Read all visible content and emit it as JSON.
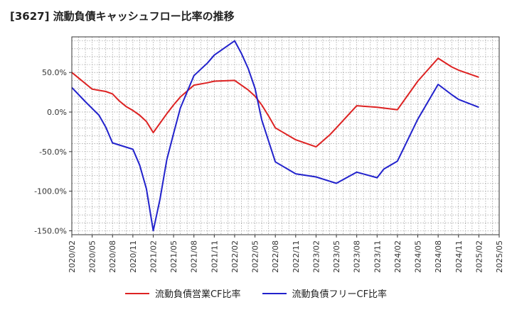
{
  "chart_data": {
    "type": "line",
    "title": "[3627]  流動負債キャッシュフロー比率の推移",
    "xlabel": "",
    "ylabel": "",
    "ylim": [
      -155,
      95
    ],
    "yticks": [
      50,
      0,
      -50,
      -100,
      -150
    ],
    "ytick_labels": [
      "50.0%",
      "0.0%",
      "-50.0%",
      "-100.0%",
      "-150.0%"
    ],
    "xlim": [
      "2020/02",
      "2025/05"
    ],
    "xtick_labels": [
      "2020/02",
      "2020/05",
      "2020/08",
      "2020/11",
      "2021/02",
      "2021/05",
      "2021/08",
      "2021/11",
      "2022/02",
      "2022/05",
      "2022/08",
      "2022/11",
      "2023/02",
      "2023/05",
      "2023/08",
      "2023/11",
      "2024/02",
      "2024/05",
      "2024/08",
      "2024/11",
      "2025/02",
      "2025/05"
    ],
    "grid": true,
    "legend_position": "bottom",
    "series": [
      {
        "name": "流動負債営業CF比率",
        "color": "#dd2222",
        "points": [
          [
            "2020/02",
            50
          ],
          [
            "2020/05",
            29
          ],
          [
            "2020/07",
            26
          ],
          [
            "2020/08",
            23
          ],
          [
            "2020/09",
            14
          ],
          [
            "2020/10",
            7
          ],
          [
            "2020/11",
            2
          ],
          [
            "2020/12",
            -4
          ],
          [
            "2021/01",
            -12
          ],
          [
            "2021/02",
            -26
          ],
          [
            "2021/04",
            -2
          ],
          [
            "2021/05",
            9
          ],
          [
            "2021/06",
            19
          ],
          [
            "2021/08",
            34
          ],
          [
            "2021/10",
            37
          ],
          [
            "2021/11",
            39
          ],
          [
            "2022/02",
            40
          ],
          [
            "2022/04",
            28
          ],
          [
            "2022/05",
            20
          ],
          [
            "2022/06",
            9
          ],
          [
            "2022/07",
            -5
          ],
          [
            "2022/08",
            -20
          ],
          [
            "2022/11",
            -35
          ],
          [
            "2023/02",
            -44
          ],
          [
            "2023/04",
            -29
          ],
          [
            "2023/05",
            -20
          ],
          [
            "2023/08",
            8
          ],
          [
            "2023/11",
            6
          ],
          [
            "2024/02",
            3
          ],
          [
            "2024/05",
            39
          ],
          [
            "2024/08",
            68
          ],
          [
            "2024/10",
            57
          ],
          [
            "2024/11",
            53
          ],
          [
            "2025/02",
            44
          ]
        ]
      },
      {
        "name": "流動負債フリーCF比率",
        "color": "#2222cc",
        "points": [
          [
            "2020/02",
            31
          ],
          [
            "2020/04",
            13
          ],
          [
            "2020/06",
            -4
          ],
          [
            "2020/07",
            -19
          ],
          [
            "2020/08",
            -39
          ],
          [
            "2020/11",
            -47
          ],
          [
            "2020/12",
            -67
          ],
          [
            "2021/01",
            -97
          ],
          [
            "2021/02",
            -150
          ],
          [
            "2021/03",
            -110
          ],
          [
            "2021/04",
            -60
          ],
          [
            "2021/05",
            -27
          ],
          [
            "2021/06",
            5
          ],
          [
            "2021/08",
            46
          ],
          [
            "2021/10",
            62
          ],
          [
            "2021/11",
            72
          ],
          [
            "2022/02",
            90
          ],
          [
            "2022/03",
            74
          ],
          [
            "2022/04",
            55
          ],
          [
            "2022/05",
            30
          ],
          [
            "2022/06",
            -10
          ],
          [
            "2022/08",
            -63
          ],
          [
            "2022/11",
            -78
          ],
          [
            "2023/02",
            -82
          ],
          [
            "2023/05",
            -90
          ],
          [
            "2023/08",
            -76
          ],
          [
            "2023/11",
            -83
          ],
          [
            "2023/12",
            -72
          ],
          [
            "2024/02",
            -62
          ],
          [
            "2024/05",
            -9
          ],
          [
            "2024/08",
            35
          ],
          [
            "2024/10",
            22
          ],
          [
            "2024/11",
            16
          ],
          [
            "2025/02",
            6
          ]
        ]
      }
    ]
  }
}
